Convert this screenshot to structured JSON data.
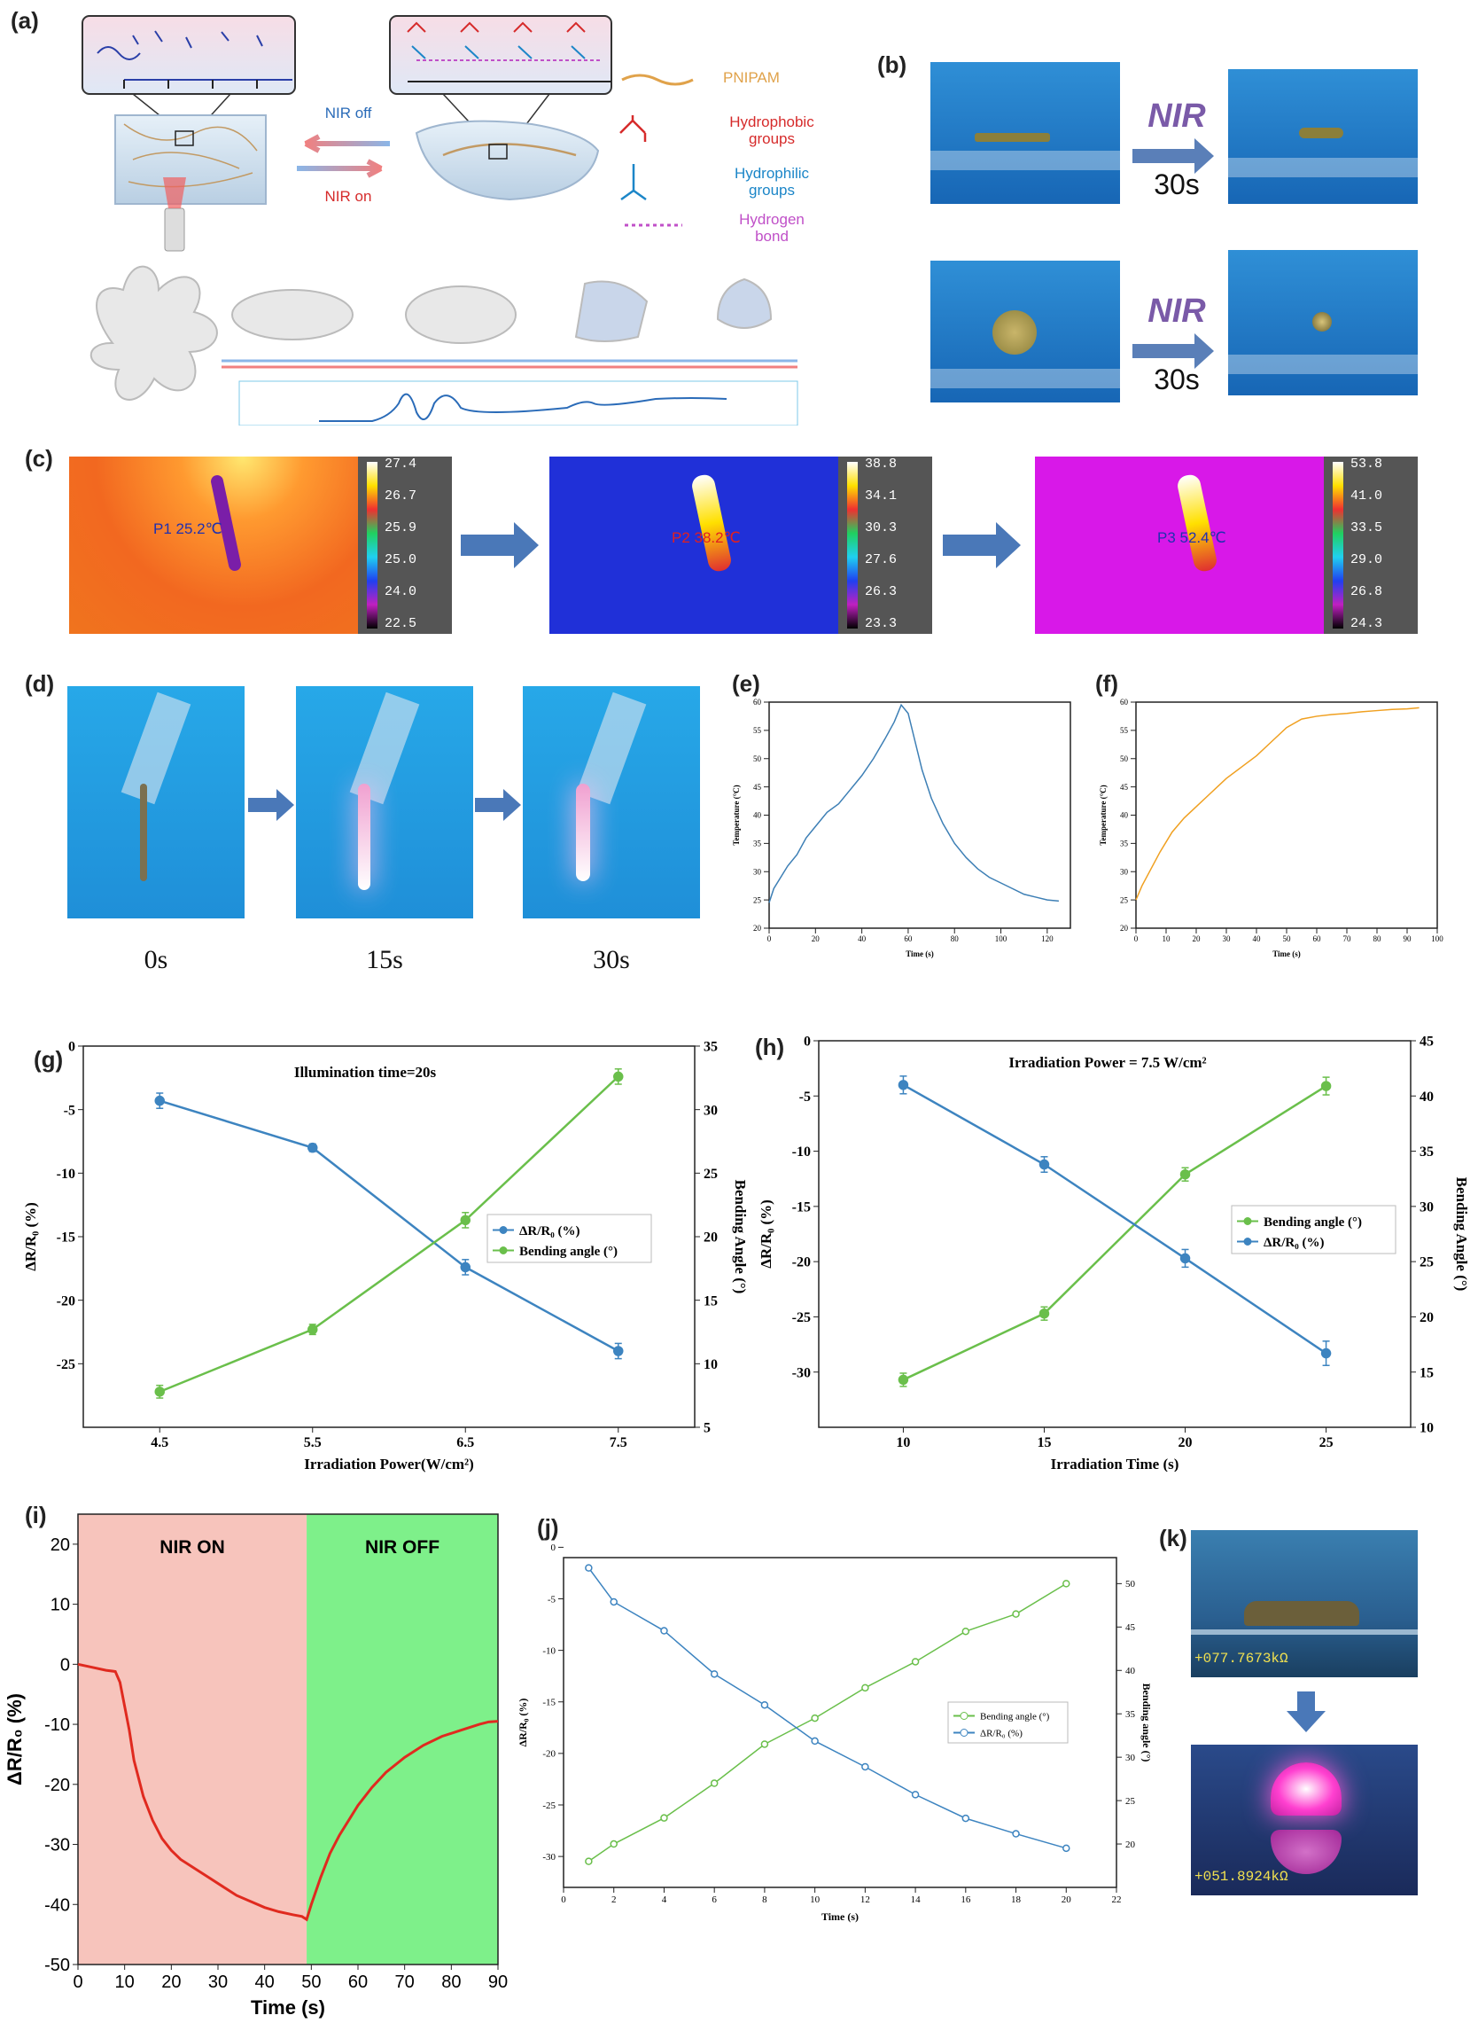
{
  "panels": {
    "a": "(a)",
    "b": "(b)",
    "c": "(c)",
    "d": "(d)",
    "e": "(e)",
    "f": "(f)",
    "g": "(g)",
    "h": "(h)",
    "i": "(i)",
    "j": "(j)",
    "k": "(k)"
  },
  "panel_a": {
    "nir_off": "NIR off",
    "nir_on": "NIR on",
    "legend": [
      {
        "label": "PNIPAM",
        "color": "#e0a24a"
      },
      {
        "label": "Hydrophobic groups",
        "color": "#d62b2b"
      },
      {
        "label": "Hydrophilic groups",
        "color": "#1c86c8"
      },
      {
        "label": "Hydrogen bond",
        "color": "#c050c8"
      }
    ]
  },
  "panel_b": {
    "arrow1_label": "NIR",
    "arrow1_time": "30s",
    "arrow2_label": "NIR",
    "arrow2_time": "30s"
  },
  "panel_c": {
    "images": [
      {
        "probe": "P1 25.2℃",
        "scale": [
          "27.4",
          "26.7",
          "25.9",
          "25.0",
          "24.0",
          "22.5"
        ]
      },
      {
        "probe": "P2 38.2℃",
        "scale": [
          "38.8",
          "34.1",
          "30.3",
          "27.6",
          "26.3",
          "23.3"
        ]
      },
      {
        "probe": "P3 52.4℃",
        "scale": [
          "53.8",
          "41.0",
          "33.5",
          "29.0",
          "26.8",
          "24.3"
        ]
      }
    ]
  },
  "panel_d": {
    "times": [
      "0s",
      "15s",
      "30s"
    ]
  },
  "chart_data": [
    {
      "id": "e",
      "type": "line",
      "xlabel": "Time (s)",
      "ylabel": "Temperature (°C)",
      "xlim": [
        0,
        130
      ],
      "ylim": [
        20,
        60
      ],
      "xticks": [
        0,
        20,
        40,
        60,
        80,
        100,
        120
      ],
      "yticks": [
        20,
        25,
        30,
        35,
        40,
        45,
        50,
        55,
        60
      ],
      "series": [
        {
          "color": "#3d7fb5",
          "x": [
            0,
            2,
            5,
            8,
            12,
            16,
            20,
            25,
            30,
            35,
            40,
            45,
            50,
            54,
            57,
            60,
            63,
            66,
            70,
            75,
            80,
            85,
            90,
            95,
            100,
            105,
            110,
            115,
            120,
            125
          ],
          "y": [
            24.5,
            27,
            29,
            31,
            33,
            36,
            38,
            40.5,
            42,
            44.5,
            47,
            50,
            53.5,
            56.5,
            59.5,
            58,
            53,
            48,
            43,
            38.5,
            35,
            32.5,
            30.5,
            29,
            28,
            27,
            26,
            25.5,
            25,
            24.8
          ]
        }
      ]
    },
    {
      "id": "f",
      "type": "line",
      "xlabel": "Time (s)",
      "ylabel": "Temperature (°C)",
      "xlim": [
        0,
        100
      ],
      "ylim": [
        20,
        60
      ],
      "xticks": [
        0,
        10,
        20,
        30,
        40,
        50,
        60,
        70,
        80,
        90,
        100
      ],
      "yticks": [
        20,
        25,
        30,
        35,
        40,
        45,
        50,
        55,
        60
      ],
      "series": [
        {
          "color": "#f0a020",
          "x": [
            0,
            2,
            5,
            8,
            12,
            16,
            20,
            25,
            30,
            35,
            40,
            45,
            50,
            55,
            60,
            65,
            70,
            75,
            80,
            85,
            90,
            94
          ],
          "y": [
            25,
            27.5,
            30.5,
            33.5,
            37,
            39.5,
            41.5,
            44,
            46.5,
            48.5,
            50.5,
            53,
            55.5,
            57,
            57.5,
            57.8,
            58,
            58.3,
            58.5,
            58.7,
            58.8,
            59
          ]
        }
      ]
    },
    {
      "id": "g",
      "type": "line",
      "annotation": "Illumination time=20s",
      "xlabel": "Irradiation Power(W/cm²)",
      "ylabel": "ΔR/R₀ (%)",
      "y2label": "Bending Angle (°)",
      "categories": [
        "4.5",
        "5.5",
        "6.5",
        "7.5"
      ],
      "ylim": [
        -30,
        0
      ],
      "yticks": [
        0,
        -5,
        -10,
        -15,
        -20,
        -25
      ],
      "y2lim": [
        5,
        35
      ],
      "y2ticks": [
        5,
        10,
        15,
        20,
        25,
        30,
        35
      ],
      "series": [
        {
          "name": "ΔR/R₀ (%)",
          "color": "#3d84c0",
          "axis": "left",
          "values": [
            -4.3,
            -8.0,
            -17.4,
            -24.0
          ],
          "err": [
            0.6,
            0.3,
            0.6,
            0.6
          ]
        },
        {
          "name": "Bending angle (°)",
          "color": "#6abf4b",
          "axis": "right",
          "values": [
            7.8,
            12.7,
            21.3,
            32.6
          ],
          "err": [
            0.5,
            0.4,
            0.6,
            0.6
          ]
        }
      ]
    },
    {
      "id": "h",
      "type": "line",
      "annotation": "Irradiation Power = 7.5 W/cm²",
      "xlabel": "Irradiation Time (s)",
      "ylabel": "ΔR/R₀ (%)",
      "y2label": "Bending Angle (°)",
      "xlim": [
        7,
        28
      ],
      "xticks": [
        10,
        15,
        20,
        25
      ],
      "ylim": [
        -35,
        0
      ],
      "yticks": [
        0,
        -5,
        -10,
        -15,
        -20,
        -25,
        -30
      ],
      "y2lim": [
        10,
        45
      ],
      "y2ticks": [
        10,
        15,
        20,
        25,
        30,
        35,
        40,
        45
      ],
      "series": [
        {
          "name": "Bending angle (°)",
          "color": "#6abf4b",
          "axis": "right",
          "x": [
            10,
            15,
            20,
            25
          ],
          "values": [
            14.3,
            20.3,
            32.9,
            40.9
          ],
          "err": [
            0.6,
            0.6,
            0.6,
            0.8
          ]
        },
        {
          "name": "ΔR/R₀ (%)",
          "color": "#3d84c0",
          "axis": "left",
          "x": [
            10,
            15,
            20,
            25
          ],
          "values": [
            -4.0,
            -11.2,
            -19.7,
            -28.3
          ],
          "err": [
            0.8,
            0.7,
            0.8,
            1.1
          ]
        }
      ]
    },
    {
      "id": "i",
      "type": "line",
      "xlabel": "Time (s)",
      "ylabel": "ΔR/R₀ (%)",
      "xlim": [
        0,
        90
      ],
      "xticks": [
        0,
        10,
        20,
        30,
        40,
        50,
        60,
        70,
        80,
        90
      ],
      "ylim": [
        -50,
        25
      ],
      "yticks": [
        20,
        10,
        0,
        -10,
        -20,
        -30,
        -40,
        -50
      ],
      "regions": [
        {
          "label": "NIR ON",
          "from": 0,
          "to": 49,
          "color": "#f7c4bc"
        },
        {
          "label": "NIR OFF",
          "from": 49,
          "to": 90,
          "color": "#7ef08a"
        }
      ],
      "series": [
        {
          "color": "#e02a1f",
          "x": [
            0,
            3,
            6,
            8,
            9,
            10,
            11,
            12,
            13,
            14,
            15,
            16,
            18,
            20,
            22,
            25,
            28,
            31,
            34,
            37,
            40,
            43,
            46,
            48,
            49,
            50,
            52,
            54,
            56,
            58,
            60,
            63,
            66,
            70,
            74,
            78,
            82,
            86,
            88,
            90
          ],
          "y": [
            0,
            -0.5,
            -1,
            -1.2,
            -3,
            -7,
            -11,
            -16,
            -19,
            -22,
            -24,
            -26,
            -29,
            -31,
            -32.5,
            -34,
            -35.5,
            -37,
            -38.5,
            -39.5,
            -40.5,
            -41.2,
            -41.7,
            -42,
            -42.5,
            -40,
            -35.5,
            -31.5,
            -28.5,
            -26,
            -23.5,
            -20.5,
            -18,
            -15.5,
            -13.5,
            -12,
            -11,
            -10,
            -9.6,
            -9.5
          ]
        }
      ]
    },
    {
      "id": "j",
      "type": "line",
      "xlabel": "Time (s)",
      "ylabel": "ΔR/R₀ (%)",
      "y2label": "Bending angle (°)",
      "xlim": [
        0,
        22
      ],
      "xticks": [
        0,
        2,
        4,
        6,
        8,
        10,
        12,
        14,
        16,
        18,
        20,
        22
      ],
      "ylim": [
        -33,
        -1
      ],
      "yticks": [
        0,
        -5,
        -10,
        -15,
        -20,
        -25,
        -30
      ],
      "y2lim": [
        15,
        53
      ],
      "y2ticks": [
        20,
        25,
        30,
        35,
        40,
        45,
        50
      ],
      "series": [
        {
          "name": "Bending angle (°)",
          "color": "#6abf4b",
          "axis": "right",
          "x": [
            1,
            2,
            4,
            6,
            8,
            10,
            12,
            14,
            16,
            18,
            20
          ],
          "values": [
            18,
            20,
            23,
            27,
            31.5,
            34.5,
            38,
            41,
            44.5,
            46.5,
            50
          ]
        },
        {
          "name": "ΔR/R₀ (%)",
          "color": "#3d84c0",
          "axis": "left",
          "x": [
            1,
            2,
            4,
            6,
            8,
            10,
            12,
            14,
            16,
            18,
            20
          ],
          "values": [
            -2,
            -5.3,
            -8.1,
            -12.3,
            -15.3,
            -18.8,
            -21.3,
            -24,
            -26.3,
            -27.8,
            -29.2
          ]
        }
      ]
    }
  ],
  "panel_k": {
    "reading1": "+077.7673kΩ",
    "reading2": "+051.8924kΩ"
  }
}
